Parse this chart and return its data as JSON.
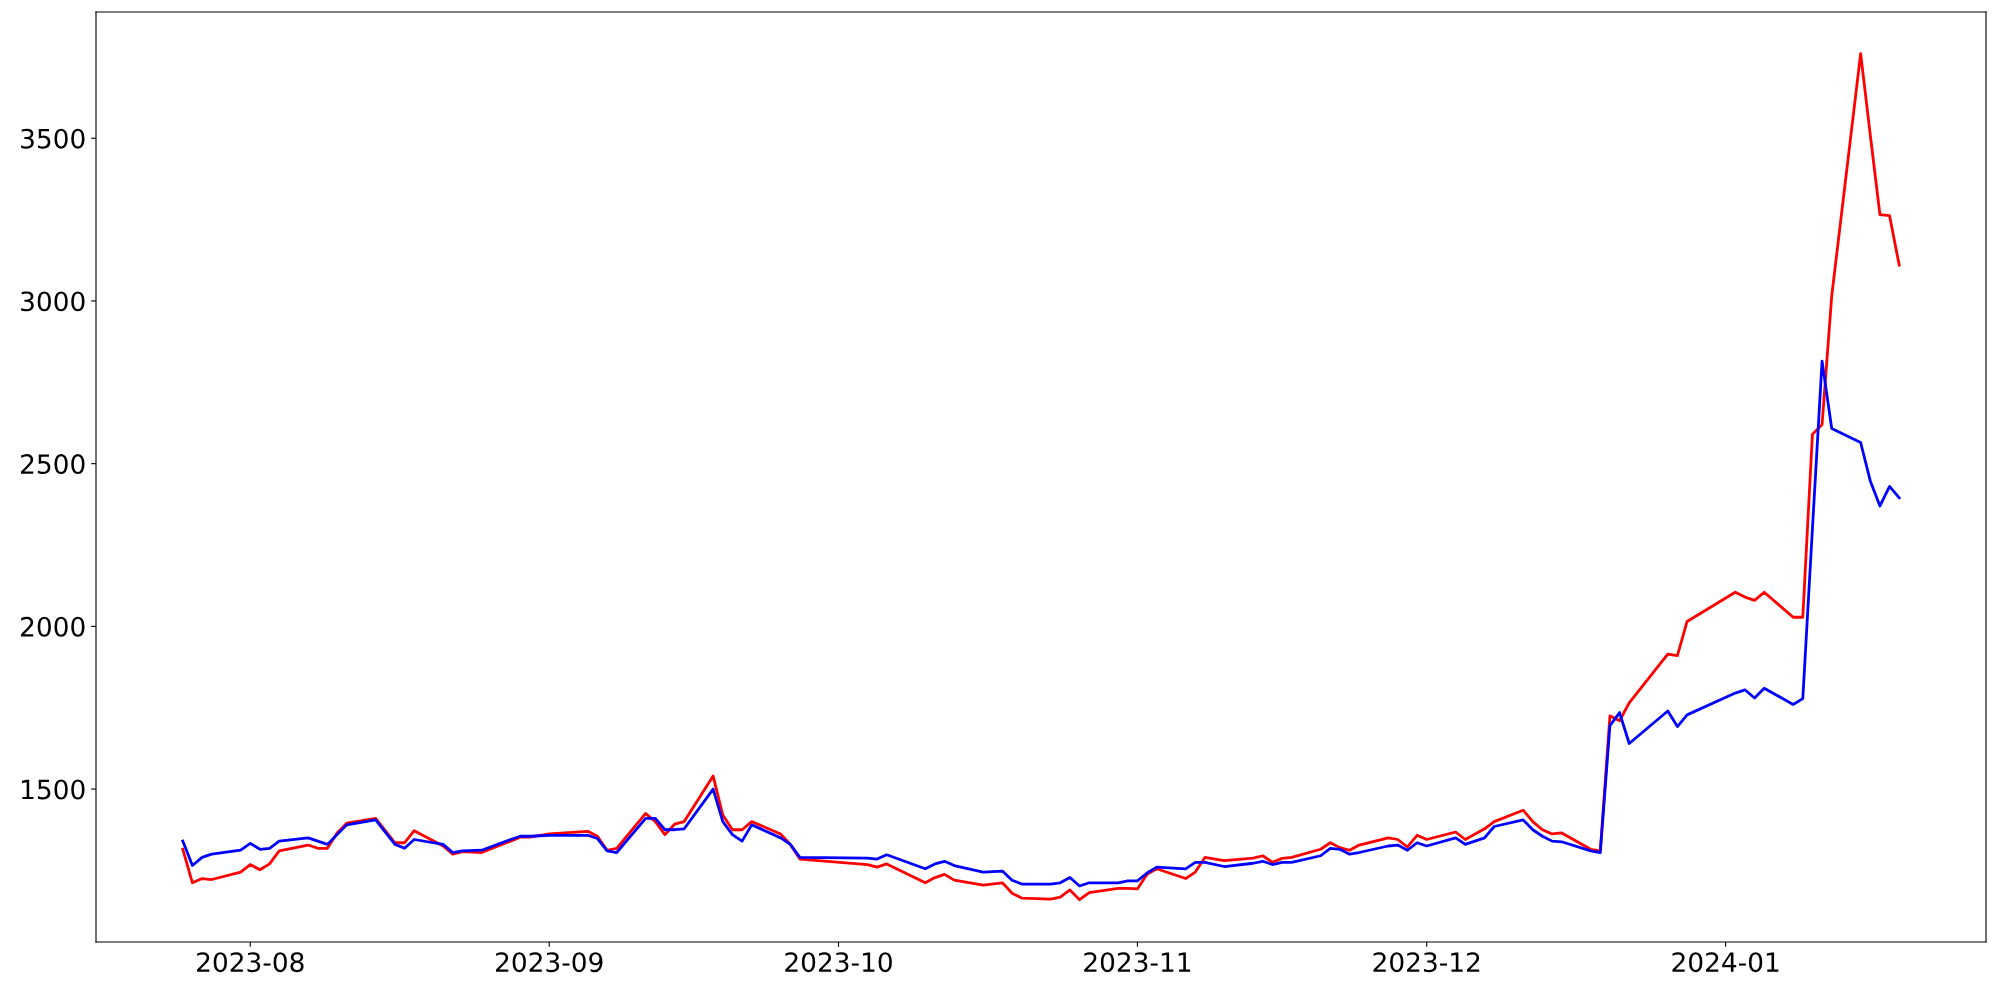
{
  "chart_data": {
    "type": "line",
    "x": [
      "2023-07-25",
      "2023-07-26",
      "2023-07-27",
      "2023-07-28",
      "2023-07-31",
      "2023-08-01",
      "2023-08-02",
      "2023-08-03",
      "2023-08-04",
      "2023-08-07",
      "2023-08-08",
      "2023-08-09",
      "2023-08-10",
      "2023-08-11",
      "2023-08-14",
      "2023-08-16",
      "2023-08-17",
      "2023-08-18",
      "2023-08-21",
      "2023-08-22",
      "2023-08-23",
      "2023-08-25",
      "2023-08-28",
      "2023-08-29",
      "2023-08-30",
      "2023-09-01",
      "2023-09-05",
      "2023-09-06",
      "2023-09-07",
      "2023-09-08",
      "2023-09-11",
      "2023-09-12",
      "2023-09-13",
      "2023-09-14",
      "2023-09-15",
      "2023-09-18",
      "2023-09-19",
      "2023-09-20",
      "2023-09-21",
      "2023-09-22",
      "2023-09-25",
      "2023-09-26",
      "2023-09-27",
      "2023-10-04",
      "2023-10-05",
      "2023-10-06",
      "2023-10-10",
      "2023-10-11",
      "2023-10-12",
      "2023-10-13",
      "2023-10-16",
      "2023-10-18",
      "2023-10-19",
      "2023-10-20",
      "2023-10-23",
      "2023-10-24",
      "2023-10-25",
      "2023-10-26",
      "2023-10-27",
      "2023-10-30",
      "2023-10-31",
      "2023-11-01",
      "2023-11-02",
      "2023-11-03",
      "2023-11-06",
      "2023-11-07",
      "2023-11-08",
      "2023-11-10",
      "2023-11-13",
      "2023-11-14",
      "2023-11-15",
      "2023-11-16",
      "2023-11-17",
      "2023-11-20",
      "2023-11-21",
      "2023-11-22",
      "2023-11-23",
      "2023-11-24",
      "2023-11-27",
      "2023-11-28",
      "2023-11-29",
      "2023-11-30",
      "2023-12-01",
      "2023-12-04",
      "2023-12-05",
      "2023-12-07",
      "2023-12-08",
      "2023-12-11",
      "2023-12-12",
      "2023-12-13",
      "2023-12-14",
      "2023-12-15",
      "2023-12-18",
      "2023-12-19",
      "2023-12-20",
      "2023-12-21",
      "2023-12-22",
      "2023-12-26",
      "2023-12-27",
      "2023-12-28",
      "2024-01-02",
      "2024-01-03",
      "2024-01-04",
      "2024-01-05",
      "2024-01-08",
      "2024-01-09",
      "2024-01-10",
      "2024-01-11",
      "2024-01-12",
      "2024-01-15",
      "2024-01-16",
      "2024-01-17",
      "2024-01-18",
      "2024-01-19"
    ],
    "series": [
      {
        "color": "#ff0000",
        "values": [
          1315,
          1212,
          1225,
          1222,
          1245,
          1268,
          1252,
          1270,
          1310,
          1328,
          1318,
          1318,
          1365,
          1395,
          1410,
          1335,
          1335,
          1372,
          1325,
          1300,
          1308,
          1305,
          1340,
          1352,
          1352,
          1362,
          1370,
          1355,
          1312,
          1318,
          1425,
          1400,
          1360,
          1392,
          1400,
          1540,
          1420,
          1375,
          1375,
          1400,
          1362,
          1330,
          1285,
          1268,
          1260,
          1270,
          1212,
          1228,
          1238,
          1220,
          1205,
          1212,
          1180,
          1165,
          1162,
          1168,
          1190,
          1160,
          1182,
          1195,
          1195,
          1193,
          1238,
          1255,
          1225,
          1245,
          1290,
          1280,
          1288,
          1295,
          1275,
          1287,
          1290,
          1315,
          1335,
          1320,
          1312,
          1328,
          1350,
          1345,
          1322,
          1358,
          1345,
          1368,
          1345,
          1378,
          1400,
          1435,
          1400,
          1375,
          1362,
          1365,
          1315,
          1310,
          1725,
          1710,
          1765,
          1915,
          1910,
          2015,
          2105,
          2090,
          2080,
          2105,
          2028,
          2028,
          2590,
          2620,
          3015,
          3760,
          3510,
          3265,
          3262,
          3110
        ]
      },
      {
        "color": "#0000ff",
        "values": [
          1340,
          1265,
          1290,
          1300,
          1312,
          1333,
          1315,
          1318,
          1340,
          1350,
          1340,
          1330,
          1360,
          1390,
          1405,
          1330,
          1318,
          1345,
          1330,
          1305,
          1310,
          1312,
          1345,
          1355,
          1355,
          1358,
          1358,
          1348,
          1310,
          1305,
          1410,
          1410,
          1375,
          1375,
          1378,
          1500,
          1400,
          1360,
          1340,
          1390,
          1350,
          1330,
          1290,
          1288,
          1285,
          1298,
          1255,
          1270,
          1278,
          1265,
          1245,
          1248,
          1220,
          1208,
          1208,
          1212,
          1228,
          1202,
          1212,
          1212,
          1218,
          1218,
          1242,
          1260,
          1255,
          1275,
          1275,
          1262,
          1272,
          1278,
          1268,
          1275,
          1275,
          1295,
          1318,
          1315,
          1300,
          1305,
          1325,
          1328,
          1312,
          1335,
          1325,
          1350,
          1330,
          1350,
          1385,
          1405,
          1375,
          1355,
          1340,
          1338,
          1310,
          1305,
          1695,
          1735,
          1640,
          1740,
          1692,
          1728,
          1795,
          1805,
          1780,
          1810,
          1760,
          1778,
          2300,
          2815,
          2608,
          2565,
          2447,
          2370,
          2430,
          2395
        ]
      }
    ],
    "xlim": [
      "2023-07-16",
      "2024-01-28"
    ],
    "xticks": [
      "2023-08",
      "2023-09",
      "2023-10",
      "2023-11",
      "2023-12",
      "2024-01"
    ],
    "ylim": [
      1030,
      3888
    ],
    "yticks": [
      1500,
      2000,
      2500,
      3000,
      3500
    ],
    "grid": false,
    "marker": "none",
    "line_style": "solid"
  }
}
